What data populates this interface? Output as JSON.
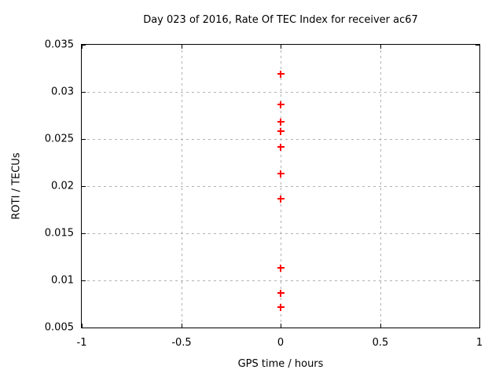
{
  "chart_data": {
    "type": "scatter",
    "title": "Day 023 of 2016, Rate Of TEC Index for receiver ac67",
    "xlabel": "GPS time / hours",
    "ylabel": "ROTI / TECUs",
    "xlim": [
      -1,
      1
    ],
    "ylim": [
      0.005,
      0.035
    ],
    "xticks": {
      "values": [
        -1,
        -0.5,
        0,
        0.5,
        1
      ],
      "labels": [
        "-1",
        "-0.5",
        "0",
        "0.5",
        "1"
      ]
    },
    "yticks": {
      "values": [
        0.005,
        0.01,
        0.015,
        0.02,
        0.025,
        0.03,
        0.035
      ],
      "labels": [
        "0.005",
        "0.01",
        "0.015",
        "0.02",
        "0.025",
        "0.03",
        "0.035"
      ]
    },
    "grid": true,
    "legend": "none",
    "series": [
      {
        "name": "ROTI",
        "marker": "plus",
        "color": "#ff0000",
        "points": [
          {
            "x": 0,
            "y": 0.0319
          },
          {
            "x": 0,
            "y": 0.0287
          },
          {
            "x": 0,
            "y": 0.0268
          },
          {
            "x": 0,
            "y": 0.0258
          },
          {
            "x": 0,
            "y": 0.0242
          },
          {
            "x": 0,
            "y": 0.0213
          },
          {
            "x": 0,
            "y": 0.0187
          },
          {
            "x": 0,
            "y": 0.0113
          },
          {
            "x": 0,
            "y": 0.0087
          },
          {
            "x": 0,
            "y": 0.0072
          }
        ]
      }
    ],
    "colors": {
      "marker": "#ff0000",
      "grid": "#b0b0b0",
      "axis": "#000000",
      "background": "#ffffff",
      "text": "#000000"
    }
  }
}
